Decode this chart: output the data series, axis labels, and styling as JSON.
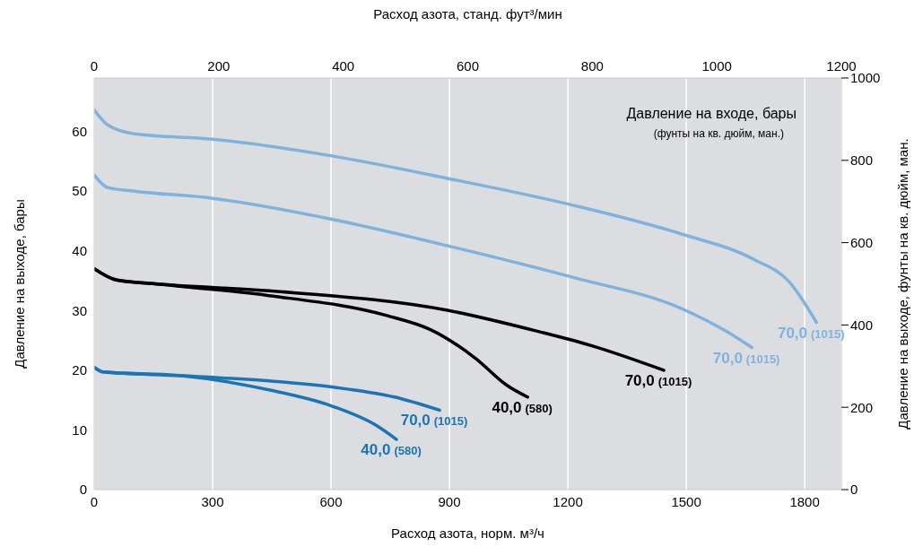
{
  "chart_data": {
    "type": "line",
    "xlabel": "Расход азота, норм. м³/ч",
    "x2label": "Расход азота, станд. фут³/мин",
    "ylabel": "Давление на выходе, бары",
    "y2label": "Давление на выходе, фунты на кв. дюйм, ман.",
    "legend_title": "Давление на входе, бары",
    "annotations": [
      "(фунты на кв. дюйм, ман.)"
    ],
    "xlim": [
      0,
      1893
    ],
    "xticks": [
      0,
      300,
      600,
      900,
      1200,
      1500,
      1800
    ],
    "x2lim": [
      0,
      1200
    ],
    "x2ticks": [
      0,
      200,
      400,
      600,
      800,
      1000,
      1200
    ],
    "ylim": [
      0,
      68.95
    ],
    "yticks": [
      0,
      10,
      20,
      30,
      40,
      50,
      60
    ],
    "y2lim": [
      0,
      1000
    ],
    "y2ticks": [
      0,
      200,
      400,
      600,
      800,
      1000
    ],
    "grid": "x",
    "marker": "none",
    "line_style": "solid",
    "series": [
      {
        "name": "70,0 (1015)",
        "color": "#7fb3dd",
        "x": [
          0,
          34,
          102,
          300,
          602,
          898,
          1216,
          1489,
          1670,
          1761,
          1830
        ],
        "values": [
          63.6,
          61.1,
          59.6,
          58.7,
          55.9,
          52.1,
          47.6,
          42.8,
          38.6,
          34.8,
          28.0
        ]
      },
      {
        "name": "70,0 (1015)",
        "color": "#7fb3dd",
        "x": [
          0,
          34,
          102,
          300,
          602,
          898,
          1216,
          1489,
          1602,
          1666
        ],
        "values": [
          52.7,
          50.6,
          50.0,
          48.8,
          45.3,
          40.8,
          35.5,
          30.3,
          26.5,
          23.8
        ]
      },
      {
        "name": "70,0 (1015)",
        "color": "#000000",
        "x": [
          0,
          57,
          148,
          443,
          898,
          1125,
          1261,
          1443
        ],
        "values": [
          37.0,
          35.1,
          34.5,
          33.3,
          30.0,
          26.5,
          24.1,
          20.0
        ]
      },
      {
        "name": "40,0 (580)",
        "color": "#000000",
        "x": [
          0,
          57,
          148,
          443,
          739,
          852,
          966,
          1045,
          1098
        ],
        "values": [
          37.0,
          35.1,
          34.5,
          32.5,
          29.2,
          26.8,
          22.0,
          17.5,
          15.5
        ]
      },
      {
        "name": "70,0 (1015)",
        "color": "#1a75b5",
        "x": [
          0,
          23,
          216,
          443,
          602,
          761,
          875
        ],
        "values": [
          20.5,
          19.7,
          19.1,
          18.2,
          17.2,
          15.5,
          13.3
        ]
      },
      {
        "name": "40,0 (580)",
        "color": "#1a75b5",
        "x": [
          0,
          23,
          216,
          443,
          602,
          716,
          766
        ],
        "values": [
          20.5,
          19.7,
          19.1,
          16.7,
          14.0,
          10.7,
          8.4
        ]
      }
    ]
  }
}
